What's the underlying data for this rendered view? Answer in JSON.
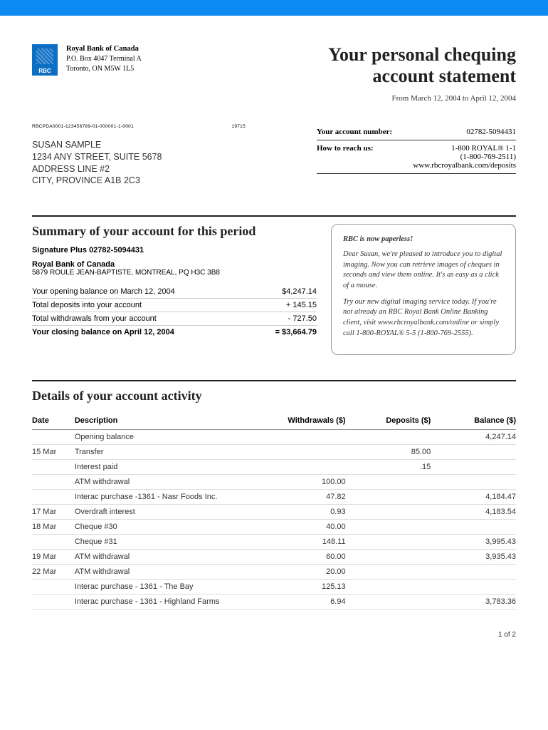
{
  "colors": {
    "top_bar": "#0d8bf2",
    "logo_bg": "#0d6fc4",
    "rule": "#222222"
  },
  "bank": {
    "short": "RBC",
    "name": "Royal Bank of Canada",
    "addr1": "P.O. Box 4047 Terminal A",
    "addr2": "Toronto, ON  M5W 1L5"
  },
  "title_line1": "Your personal chequing",
  "title_line2": "account statement",
  "period": "From March 12, 2004 to April 12, 2004",
  "ref_code": "RBCPDA0001-123456789-01-000001-1-0001",
  "ref_num": "19715",
  "customer": {
    "name": "SUSAN SAMPLE",
    "addr1": "1234 ANY STREET, SUITE 5678",
    "addr2": "ADDRESS LINE #2",
    "addr3": "CITY, PROVINCE  A1B 2C3"
  },
  "account_info": {
    "label_acct": "Your account number:",
    "acct_no": "02782-5094431",
    "label_reach": "How to reach us:",
    "phone1": "1-800 ROYAL® 1-1",
    "phone2": "(1-800-769-2511)",
    "web": "www.rbcroyalbank.com/deposits"
  },
  "summary": {
    "title": "Summary of your account for this period",
    "acct_type": "Signature Plus 02782-5094431",
    "branch_name": "Royal Bank of Canada",
    "branch_addr": "5879 ROULE JEAN-BAPTISTE, MONTREAL, PQ  H3C 3B8",
    "rows": [
      {
        "label": "Your opening balance on March 12, 2004",
        "value": "$4,247.14"
      },
      {
        "label": "Total deposits into your account",
        "value": "+ 145.15"
      },
      {
        "label": "Total withdrawals from your account",
        "value": "- 727.50"
      }
    ],
    "closing_label": "Your closing balance on April 12, 2004",
    "closing_value": "= $3,664.79"
  },
  "promo": {
    "title": "RBC is now paperless!",
    "p1": "Dear Susan, we're pleased to introduce you to digital imaging. Now you can retrieve images of cheques in seconds and view them online. It's as easy as a click of a mouse.",
    "p2": "Try our new digital imaging service today. If you're not already an RBC Royal Bank Online Banking client, visit www.rbcroyalbank.com/online or simply call 1-800-ROYAL® 5-5 (1-800-769-2555)."
  },
  "details": {
    "title": "Details of your account activity",
    "headers": {
      "date": "Date",
      "desc": "Description",
      "w": "Withdrawals ($)",
      "d": "Deposits ($)",
      "b": "Balance ($)"
    },
    "rows": [
      {
        "date": "",
        "desc": "Opening balance",
        "w": "",
        "d": "",
        "b": "4,247.14"
      },
      {
        "date": "15 Mar",
        "desc": "Transfer",
        "w": "",
        "d": "85.00",
        "b": ""
      },
      {
        "date": "",
        "desc": "Interest paid",
        "w": "",
        "d": ".15",
        "b": ""
      },
      {
        "date": "",
        "desc": "ATM withdrawal",
        "w": "100.00",
        "d": "",
        "b": ""
      },
      {
        "date": "",
        "desc": "Interac purchase -1361 - Nasr Foods Inc.",
        "w": "47.82",
        "d": "",
        "b": "4,184.47"
      },
      {
        "date": "17 Mar",
        "desc": "Overdraft interest",
        "w": "0.93",
        "d": "",
        "b": "4,183.54"
      },
      {
        "date": "18 Mar",
        "desc": "Cheque #30",
        "w": "40.00",
        "d": "",
        "b": ""
      },
      {
        "date": "",
        "desc": "Cheque #31",
        "w": "148.11",
        "d": "",
        "b": "3,995.43"
      },
      {
        "date": "19 Mar",
        "desc": "ATM withdrawal",
        "w": "60.00",
        "d": "",
        "b": "3,935.43"
      },
      {
        "date": "22 Mar",
        "desc": "ATM withdrawal",
        "w": "20.00",
        "d": "",
        "b": ""
      },
      {
        "date": "",
        "desc": "Interac purchase - 1361 - The Bay",
        "w": "125.13",
        "d": "",
        "b": ""
      },
      {
        "date": "",
        "desc": "Interac purchase - 1361 - Highland Farms",
        "w": "6.94",
        "d": "",
        "b": "3,783.36"
      }
    ]
  },
  "page_num": "1 of 2"
}
